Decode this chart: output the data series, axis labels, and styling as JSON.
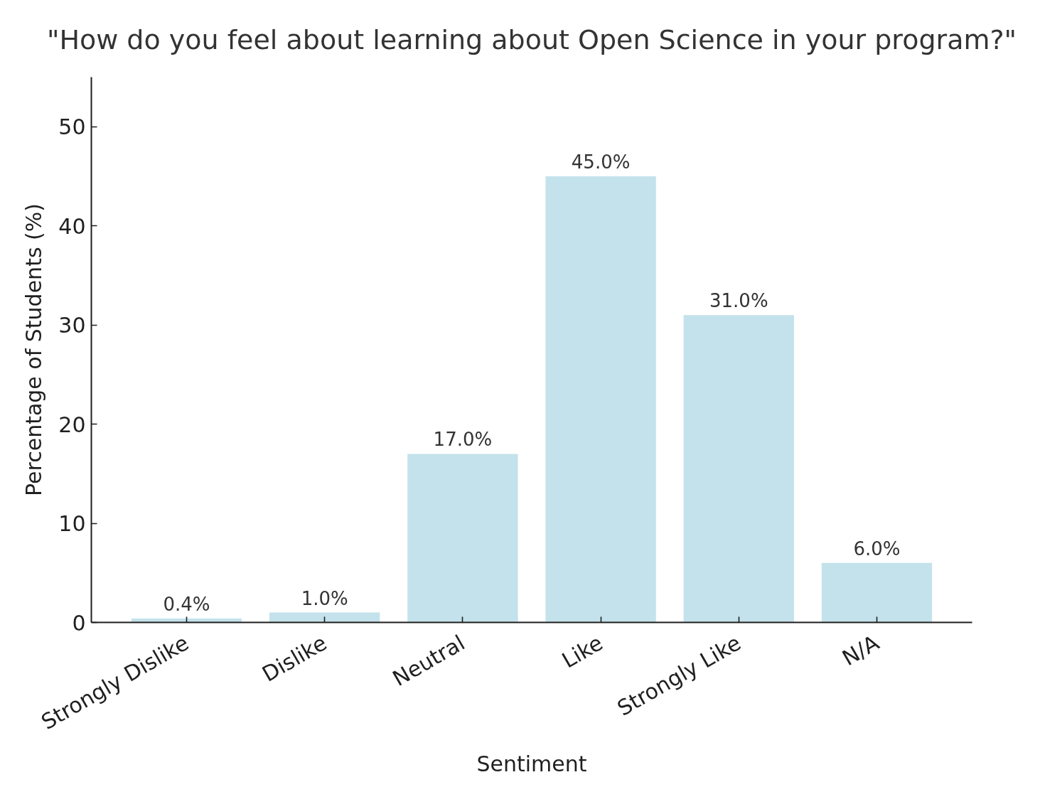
{
  "chart_data": {
    "type": "bar",
    "title": "\"How do you feel about learning about Open Science in your program?\"",
    "xlabel": "Sentiment",
    "ylabel": "Percentage of Students (%)",
    "categories": [
      "Strongly Dislike",
      "Dislike",
      "Neutral",
      "Like",
      "Strongly Like",
      "N/A"
    ],
    "values": [
      0.4,
      1.0,
      17.0,
      45.0,
      31.0,
      6.0
    ],
    "value_labels": [
      "0.4%",
      "1.0%",
      "17.0%",
      "45.0%",
      "31.0%",
      "6.0%"
    ],
    "color": "#c4e2eb",
    "ylim": [
      0,
      55
    ],
    "yticks": [
      0,
      10,
      20,
      30,
      40,
      50
    ]
  }
}
